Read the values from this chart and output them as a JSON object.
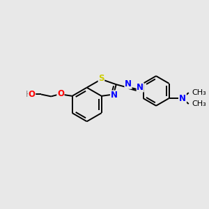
{
  "background_color": "#e8e8e8",
  "bond_color": "#000000",
  "atom_colors": {
    "N": "#0000ff",
    "O": "#ff0000",
    "S": "#cccc00",
    "H": "#888888",
    "C": "#000000"
  },
  "figsize": [
    3.0,
    3.0
  ],
  "dpi": 100,
  "lw": 1.4,
  "fs": 8.5
}
